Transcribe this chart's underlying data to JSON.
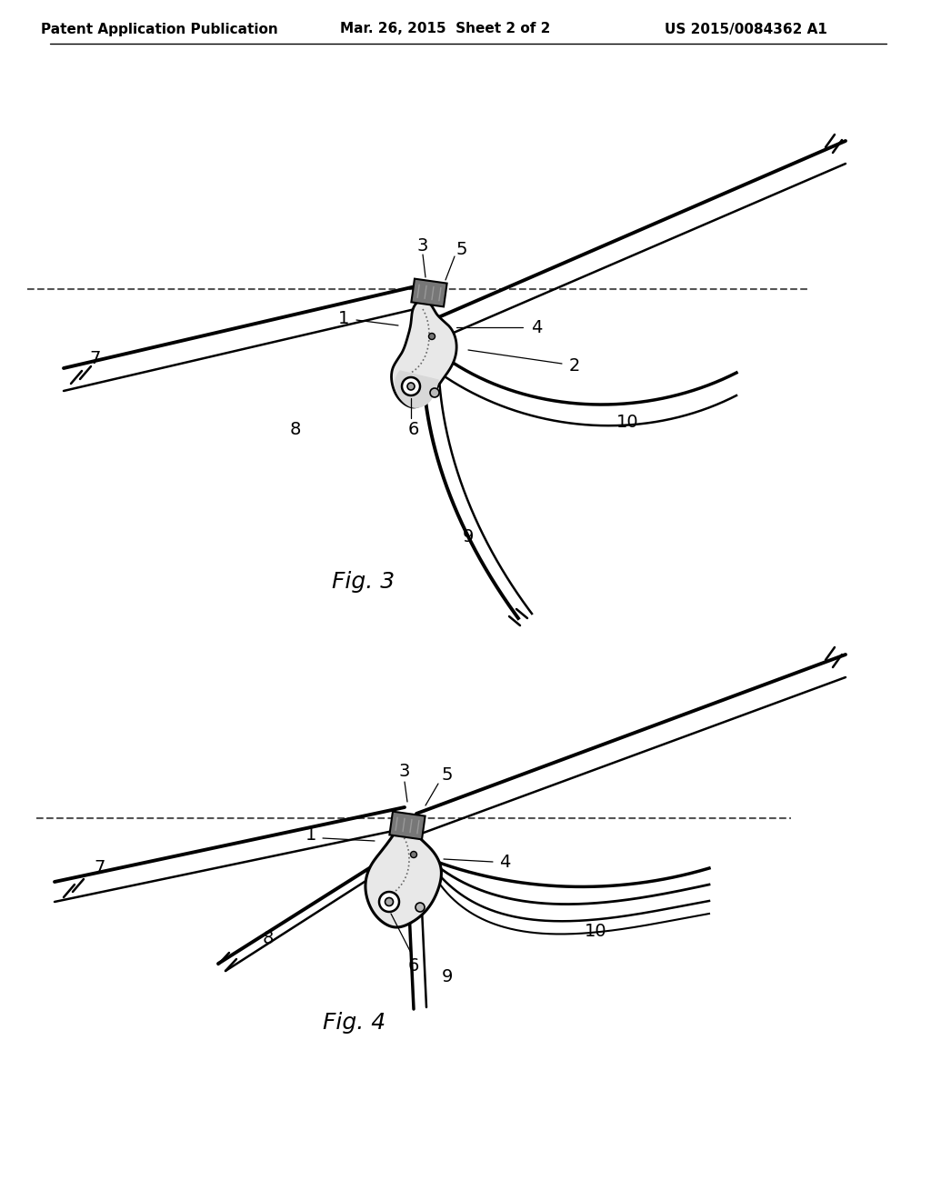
{
  "background_color": "#ffffff",
  "header_left": "Patent Application Publication",
  "header_center": "Mar. 26, 2015  Sheet 2 of 2",
  "header_right": "US 2015/0084362 A1",
  "fig3_label": "Fig. 3",
  "fig4_label": "Fig. 4",
  "text_color": "#000000",
  "line_color": "#000000",
  "gray_dark": "#444444",
  "gray_mid": "#888888",
  "gray_light": "#cccccc",
  "gray_body": "#e0e0e0"
}
